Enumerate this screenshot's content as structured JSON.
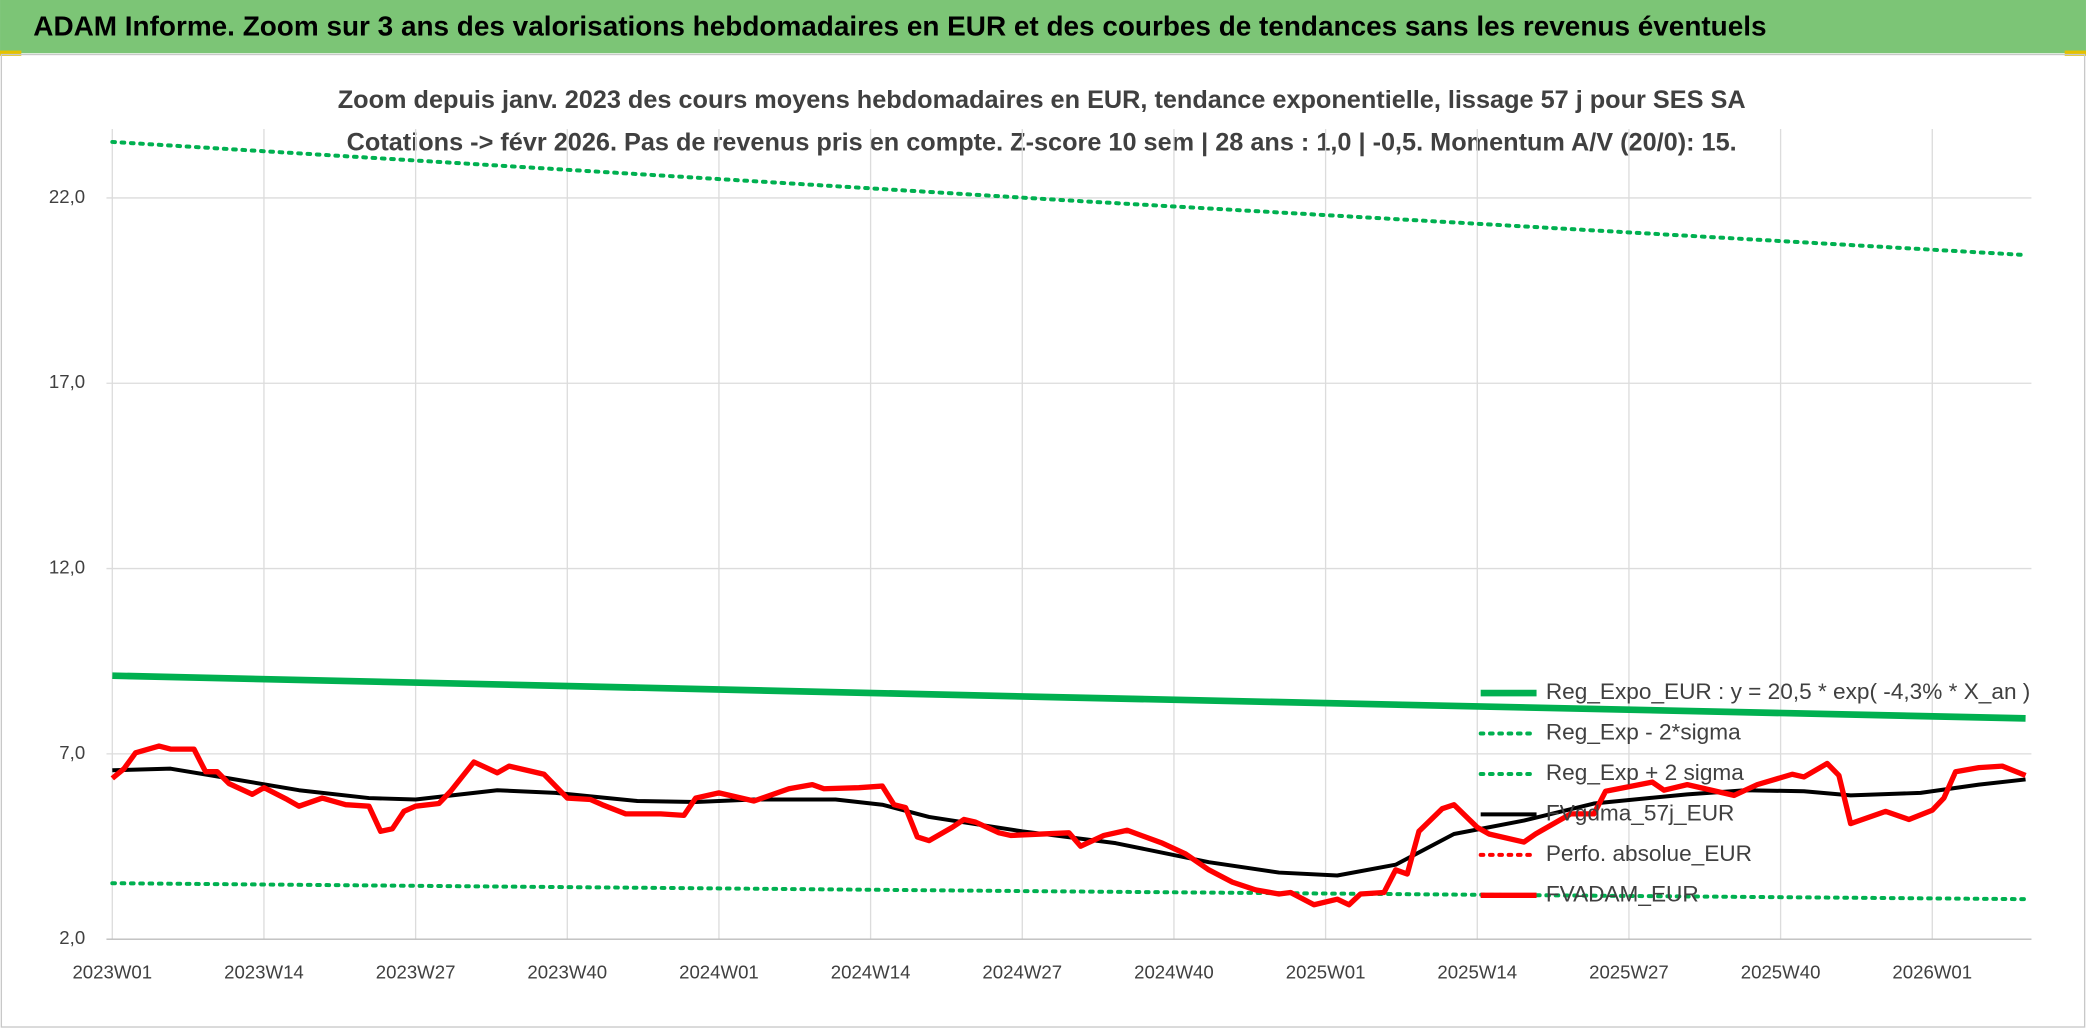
{
  "chart_data": {
    "type": "line",
    "header": "ADAM Informe. Zoom sur 3 ans des valorisations hebdomadaires en EUR et des courbes de tendances sans les revenus éventuels",
    "title": "Zoom depuis janv. 2023 des cours moyens hebdomadaires en EUR, tendance exponentielle, lissage 57 j pour SES SA",
    "subtitle": "Cotations -> févr 2026. Pas de revenus pris en compte. Z-score 10 sem | 28 ans : 1,0 | -0,5. Momentum A/V (20/0): 15.",
    "xlim": [
      -0.5,
      164.5
    ],
    "xticks": [
      {
        "value": 0,
        "label": "2023W01"
      },
      {
        "value": 13,
        "label": "2023W14"
      },
      {
        "value": 26,
        "label": "2023W27"
      },
      {
        "value": 39,
        "label": "2023W40"
      },
      {
        "value": 52,
        "label": "2024W01"
      },
      {
        "value": 65,
        "label": "2024W14"
      },
      {
        "value": 78,
        "label": "2024W27"
      },
      {
        "value": 91,
        "label": "2024W40"
      },
      {
        "value": 104,
        "label": "2025W01"
      },
      {
        "value": 117,
        "label": "2025W14"
      },
      {
        "value": 130,
        "label": "2025W27"
      },
      {
        "value": 143,
        "label": "2025W40"
      },
      {
        "value": 156,
        "label": "2026W01"
      }
    ],
    "ylim": [
      2,
      23.5
    ],
    "yticks": [
      {
        "value": 2,
        "label": "2,0"
      },
      {
        "value": 7,
        "label": "7,0"
      },
      {
        "value": 12,
        "label": "12,0"
      },
      {
        "value": 17,
        "label": "17,0"
      },
      {
        "value": 22,
        "label": "22,0"
      }
    ],
    "grid": true,
    "legend": "right",
    "series": [
      {
        "name": "Reg_Expo_EUR : y = 20,5 * exp( -4,3% *  X_an )",
        "color": "#00b050",
        "style": "solid",
        "x": [
          0,
          82,
          164
        ],
        "values": [
          9.11,
          8.52,
          7.96
        ]
      },
      {
        "name": "Reg_Exp - 2*sigma",
        "color": "#00b050",
        "style": "dotted",
        "x": [
          0,
          82,
          164
        ],
        "values": [
          3.51,
          3.29,
          3.08
        ]
      },
      {
        "name": "Reg_Exp + 2 sigma",
        "color": "#00b050",
        "style": "dotted",
        "x": [
          0,
          82,
          164
        ],
        "values": [
          23.51,
          21.93,
          20.46
        ]
      },
      {
        "name": "FVgdma_57j_EUR",
        "color": "#000000",
        "style": "solid",
        "x": [
          0,
          5,
          10,
          16,
          22,
          26,
          33,
          38,
          45,
          50,
          55,
          62,
          66,
          70,
          78,
          86,
          94,
          100,
          105,
          110,
          115,
          121,
          127,
          135,
          140,
          145,
          149,
          155,
          160,
          164
        ],
        "values": [
          6.56,
          6.6,
          6.34,
          6.02,
          5.81,
          5.77,
          6.02,
          5.95,
          5.73,
          5.7,
          5.77,
          5.77,
          5.63,
          5.3,
          4.91,
          4.59,
          4.08,
          3.8,
          3.72,
          4.01,
          4.84,
          5.2,
          5.66,
          5.91,
          6.02,
          5.99,
          5.88,
          5.95,
          6.17,
          6.31
        ]
      },
      {
        "name": "Perfo. absolue_EUR",
        "color": "#ff0000",
        "style": "dotted",
        "x": [],
        "values": []
      },
      {
        "name": "FVADAM_EUR",
        "color": "#ff0000",
        "style": "thick",
        "x": [
          0,
          1,
          2,
          4,
          5,
          7,
          8,
          9,
          10,
          12,
          13,
          15,
          16,
          18,
          20,
          22,
          23,
          24,
          25,
          26,
          28,
          29,
          31,
          33,
          34,
          37,
          39,
          41,
          42,
          44,
          47,
          49,
          50,
          52,
          55,
          58,
          60,
          61,
          64,
          66,
          67,
          68,
          69,
          70,
          72,
          73,
          74,
          76,
          77,
          82,
          83,
          85,
          87,
          90,
          92,
          94,
          96,
          98,
          100,
          101,
          103,
          105,
          106,
          107,
          109,
          110,
          111,
          112,
          114,
          115,
          117,
          118,
          121,
          122,
          125,
          127,
          128,
          132,
          133,
          135,
          139,
          141,
          144,
          145,
          147,
          148,
          149,
          152,
          154,
          156,
          157,
          158,
          160,
          162,
          164
        ],
        "values": [
          6.34,
          6.6,
          7.03,
          7.21,
          7.13,
          7.13,
          6.52,
          6.52,
          6.2,
          5.91,
          6.09,
          5.77,
          5.59,
          5.81,
          5.63,
          5.59,
          4.91,
          4.98,
          5.45,
          5.59,
          5.66,
          5.99,
          6.78,
          6.49,
          6.67,
          6.45,
          5.81,
          5.77,
          5.63,
          5.38,
          5.38,
          5.34,
          5.81,
          5.95,
          5.73,
          6.06,
          6.17,
          6.06,
          6.09,
          6.13,
          5.63,
          5.55,
          4.76,
          4.66,
          5.02,
          5.23,
          5.16,
          4.87,
          4.8,
          4.87,
          4.51,
          4.8,
          4.94,
          4.59,
          4.3,
          3.87,
          3.54,
          3.33,
          3.22,
          3.26,
          2.93,
          3.08,
          2.93,
          3.22,
          3.26,
          3.87,
          3.76,
          4.91,
          5.52,
          5.63,
          5.02,
          4.84,
          4.62,
          4.84,
          5.38,
          5.38,
          5.99,
          6.24,
          6.02,
          6.17,
          5.88,
          6.17,
          6.45,
          6.38,
          6.74,
          6.42,
          5.12,
          5.45,
          5.23,
          5.48,
          5.81,
          6.52,
          6.63,
          6.67,
          6.42
        ]
      }
    ]
  }
}
